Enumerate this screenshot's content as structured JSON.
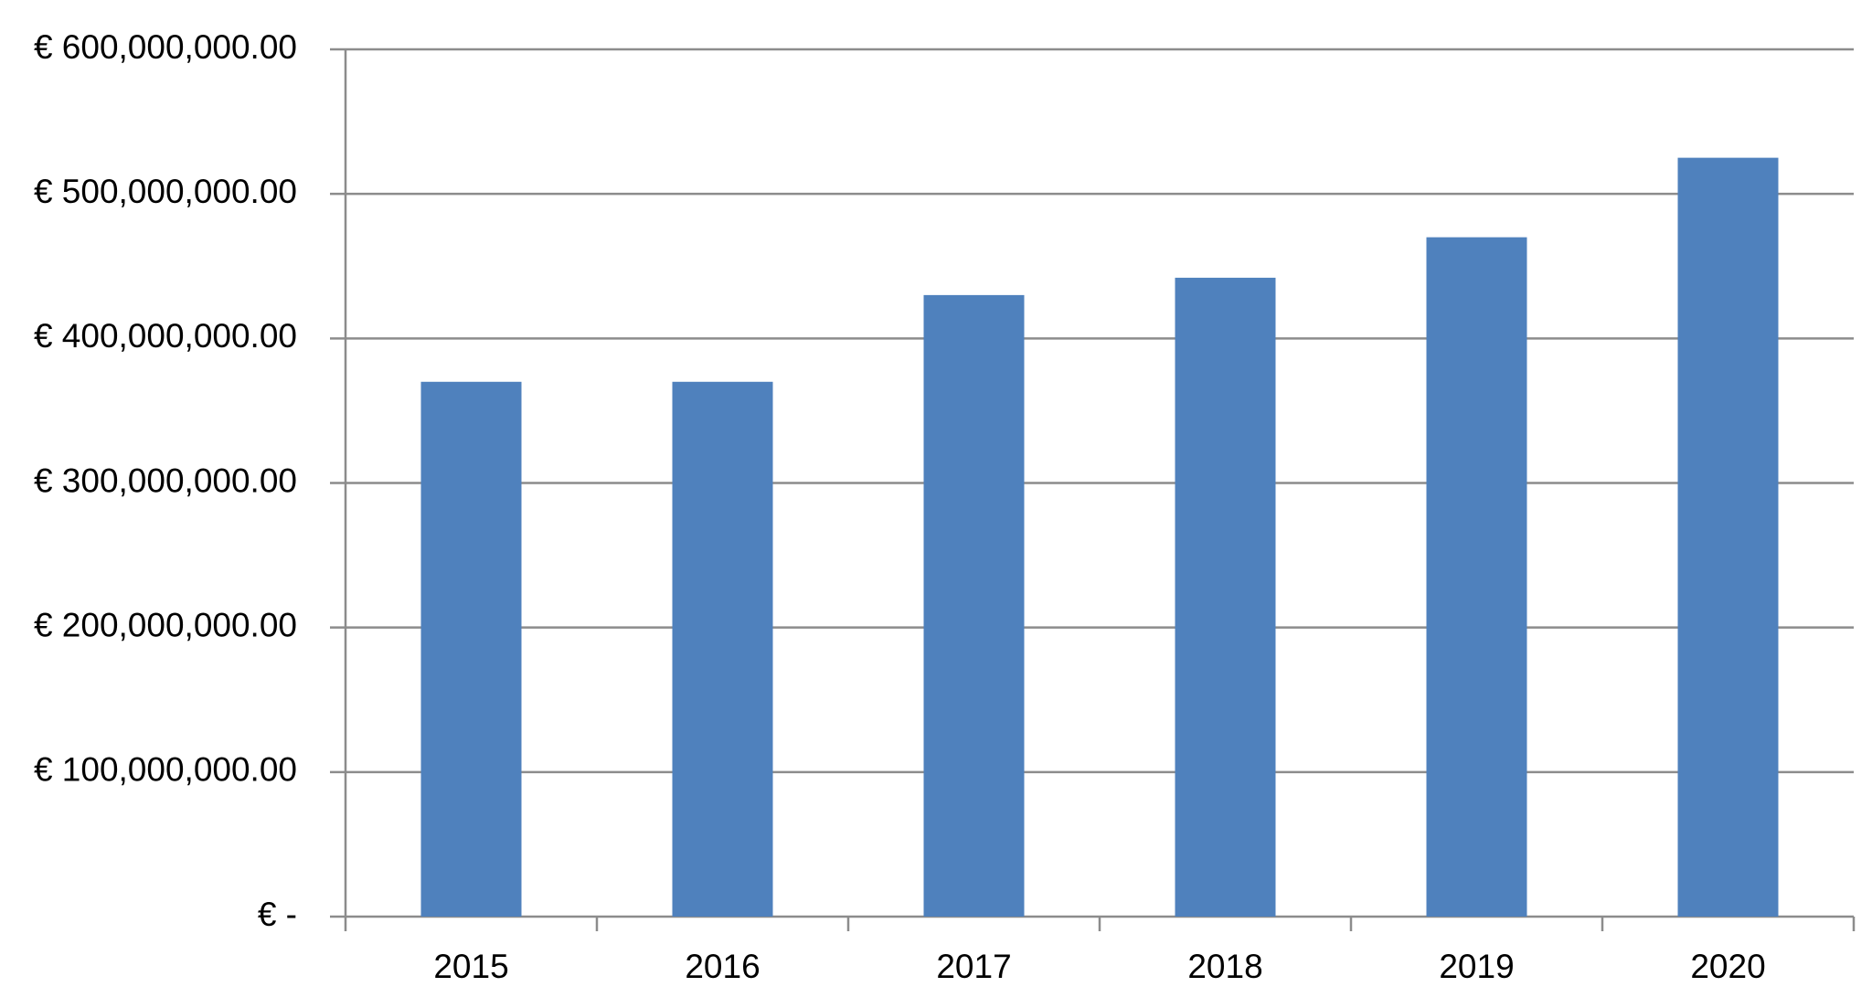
{
  "chart_data": {
    "type": "bar",
    "categories": [
      "2015",
      "2016",
      "2017",
      "2018",
      "2019",
      "2020"
    ],
    "values": [
      370000000,
      370000000,
      430000000,
      442000000,
      470000000,
      525000000
    ],
    "color": "#4f81bd",
    "ylim": [
      0,
      600000000
    ],
    "yticks": [
      {
        "value": 0,
        "label": "€ -"
      },
      {
        "value": 100000000,
        "label": "€ 100,000,000.00"
      },
      {
        "value": 200000000,
        "label": "€ 200,000,000.00"
      },
      {
        "value": 300000000,
        "label": "€ 300,000,000.00"
      },
      {
        "value": 400000000,
        "label": "€ 400,000,000.00"
      },
      {
        "value": 500000000,
        "label": "€ 500,000,000.00"
      },
      {
        "value": 600000000,
        "label": "€ 600,000,000.00"
      }
    ],
    "grid": true
  }
}
